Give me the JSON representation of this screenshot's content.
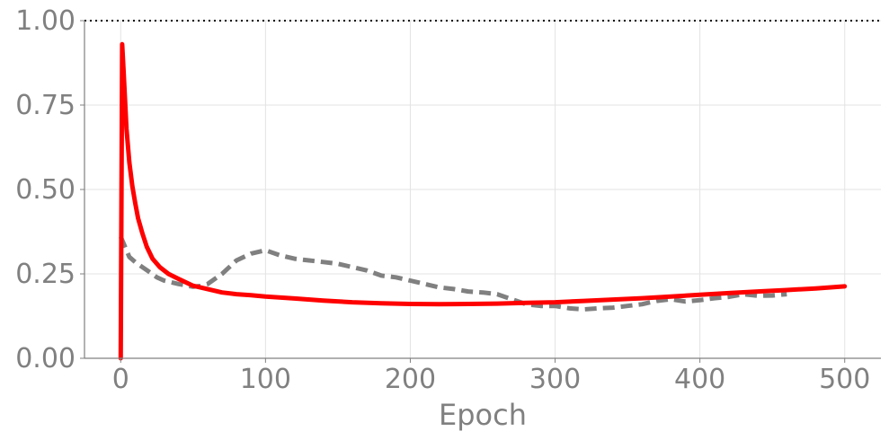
{
  "chart_data": {
    "type": "line",
    "title": "",
    "xlabel": "Epoch",
    "ylabel": "",
    "xlim": [
      -25,
      525
    ],
    "ylim": [
      0,
      1.0
    ],
    "grid": true,
    "reference_line": {
      "y": 1.0,
      "style": "dotted",
      "color": "#000000"
    },
    "xticks": [
      0,
      100,
      200,
      300,
      400,
      500
    ],
    "xtick_labels": [
      "0",
      "100",
      "200",
      "300",
      "400",
      "500"
    ],
    "yticks": [
      0,
      0.25,
      0.5,
      0.75,
      1.0
    ],
    "ytick_labels": [
      "0.00",
      "0.25",
      "0.50",
      "0.75",
      "1.00"
    ],
    "series": [
      {
        "color": "#ff0000",
        "style": "solid",
        "x": [
          0,
          1,
          2,
          4,
          6,
          8,
          10,
          12,
          15,
          18,
          22,
          27,
          33,
          40,
          50,
          60,
          70,
          80,
          90,
          100,
          120,
          140,
          160,
          180,
          200,
          220,
          240,
          260,
          280,
          300,
          320,
          340,
          360,
          380,
          400,
          420,
          440,
          460,
          480,
          500
        ],
        "y": [
          0.0,
          0.93,
          0.85,
          0.68,
          0.58,
          0.51,
          0.46,
          0.415,
          0.37,
          0.33,
          0.295,
          0.27,
          0.25,
          0.235,
          0.215,
          0.205,
          0.195,
          0.19,
          0.187,
          0.183,
          0.177,
          0.171,
          0.166,
          0.163,
          0.161,
          0.16,
          0.161,
          0.162,
          0.164,
          0.166,
          0.17,
          0.174,
          0.178,
          0.183,
          0.188,
          0.193,
          0.198,
          0.202,
          0.207,
          0.213
        ]
      },
      {
        "color": "#808080",
        "style": "dashed",
        "x": [
          0,
          3,
          6,
          10,
          15,
          20,
          25,
          30,
          40,
          50,
          55,
          60,
          70,
          80,
          90,
          100,
          110,
          120,
          130,
          140,
          150,
          160,
          170,
          180,
          190,
          200,
          210,
          220,
          230,
          240,
          250,
          260,
          270,
          280,
          290,
          300,
          310,
          320,
          330,
          340,
          350,
          360,
          370,
          380,
          390,
          400,
          410,
          420,
          430,
          440,
          450,
          460
        ],
        "y": [
          0.36,
          0.33,
          0.3,
          0.285,
          0.27,
          0.255,
          0.24,
          0.23,
          0.22,
          0.212,
          0.214,
          0.22,
          0.25,
          0.29,
          0.31,
          0.32,
          0.305,
          0.295,
          0.29,
          0.285,
          0.28,
          0.27,
          0.26,
          0.245,
          0.24,
          0.23,
          0.22,
          0.21,
          0.205,
          0.198,
          0.195,
          0.19,
          0.175,
          0.16,
          0.155,
          0.155,
          0.148,
          0.145,
          0.148,
          0.15,
          0.155,
          0.16,
          0.17,
          0.175,
          0.168,
          0.172,
          0.178,
          0.182,
          0.19,
          0.185,
          0.186,
          0.19
        ]
      }
    ]
  }
}
